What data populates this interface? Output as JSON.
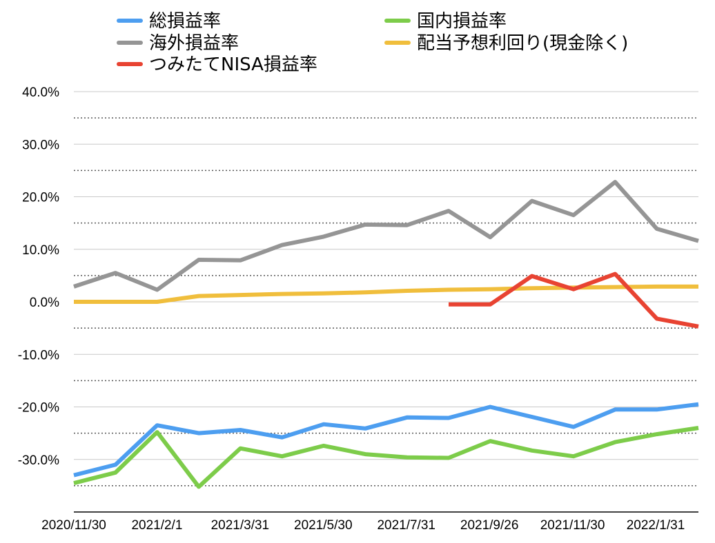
{
  "chart_data": {
    "type": "line",
    "title": "",
    "xlabel": "",
    "ylabel": "",
    "ylim": [
      -40,
      40
    ],
    "y_unit": "%",
    "y_ticks": [
      40,
      30,
      20,
      10,
      0,
      -10,
      -20,
      -30
    ],
    "y_tick_labels": [
      "40.0%",
      "30.0%",
      "20.0%",
      "10.0%",
      "0.0%",
      "-10.0%",
      "-20.0%",
      "-30.0%"
    ],
    "x_tick_labels": [
      "2020/11/30",
      "2021/2/1",
      "2021/3/31",
      "2021/5/30",
      "2021/7/31",
      "2021/9/26",
      "2021/11/30",
      "2022/1/31"
    ],
    "grid": "horizontal: solid at labeled ticks, dotted at midpoints",
    "legend_position": "top",
    "series": [
      {
        "name": "総損益率",
        "color": "#4d9ef0",
        "values": [
          -33.0,
          -31.0,
          -23.5,
          -25.0,
          -24.4,
          -25.8,
          -23.3,
          -24.1,
          -22.0,
          -22.1,
          -20.0,
          -21.9,
          -23.8,
          -20.5,
          -20.5,
          -19.5
        ]
      },
      {
        "name": "国内損益率",
        "color": "#7dcc4a",
        "values": [
          -34.5,
          -32.5,
          -24.8,
          -35.2,
          -27.9,
          -29.4,
          -27.4,
          -29.0,
          -29.6,
          -29.7,
          -26.5,
          -28.3,
          -29.4,
          -26.7,
          -25.2,
          -24.0
        ]
      },
      {
        "name": "海外損益率",
        "color": "#959595",
        "values": [
          2.9,
          5.5,
          2.3,
          8.0,
          7.9,
          10.8,
          12.4,
          14.7,
          14.6,
          17.3,
          12.3,
          19.2,
          16.5,
          22.8,
          13.9,
          11.6
        ]
      },
      {
        "name": "配当予想利回り(現金除く)",
        "color": "#f0be3c",
        "values": [
          0.0,
          0.0,
          0.0,
          1.1,
          1.3,
          1.5,
          1.6,
          1.8,
          2.1,
          2.3,
          2.4,
          2.6,
          2.7,
          2.8,
          2.9,
          2.9
        ]
      },
      {
        "name": "つみたてNISA損益率",
        "color": "#e84332",
        "values": [
          null,
          null,
          null,
          null,
          null,
          null,
          null,
          null,
          null,
          -0.5,
          -0.5,
          4.9,
          2.4,
          5.3,
          -3.2,
          -4.7
        ]
      }
    ]
  },
  "legend": [
    {
      "label": "総損益率",
      "color": "#4d9ef0"
    },
    {
      "label": "国内損益率",
      "color": "#7dcc4a"
    },
    {
      "label": "海外損益率",
      "color": "#959595"
    },
    {
      "label": "配当予想利回り(現金除く)",
      "color": "#f0be3c"
    },
    {
      "label": "つみたてNISA損益率",
      "color": "#e84332"
    }
  ]
}
